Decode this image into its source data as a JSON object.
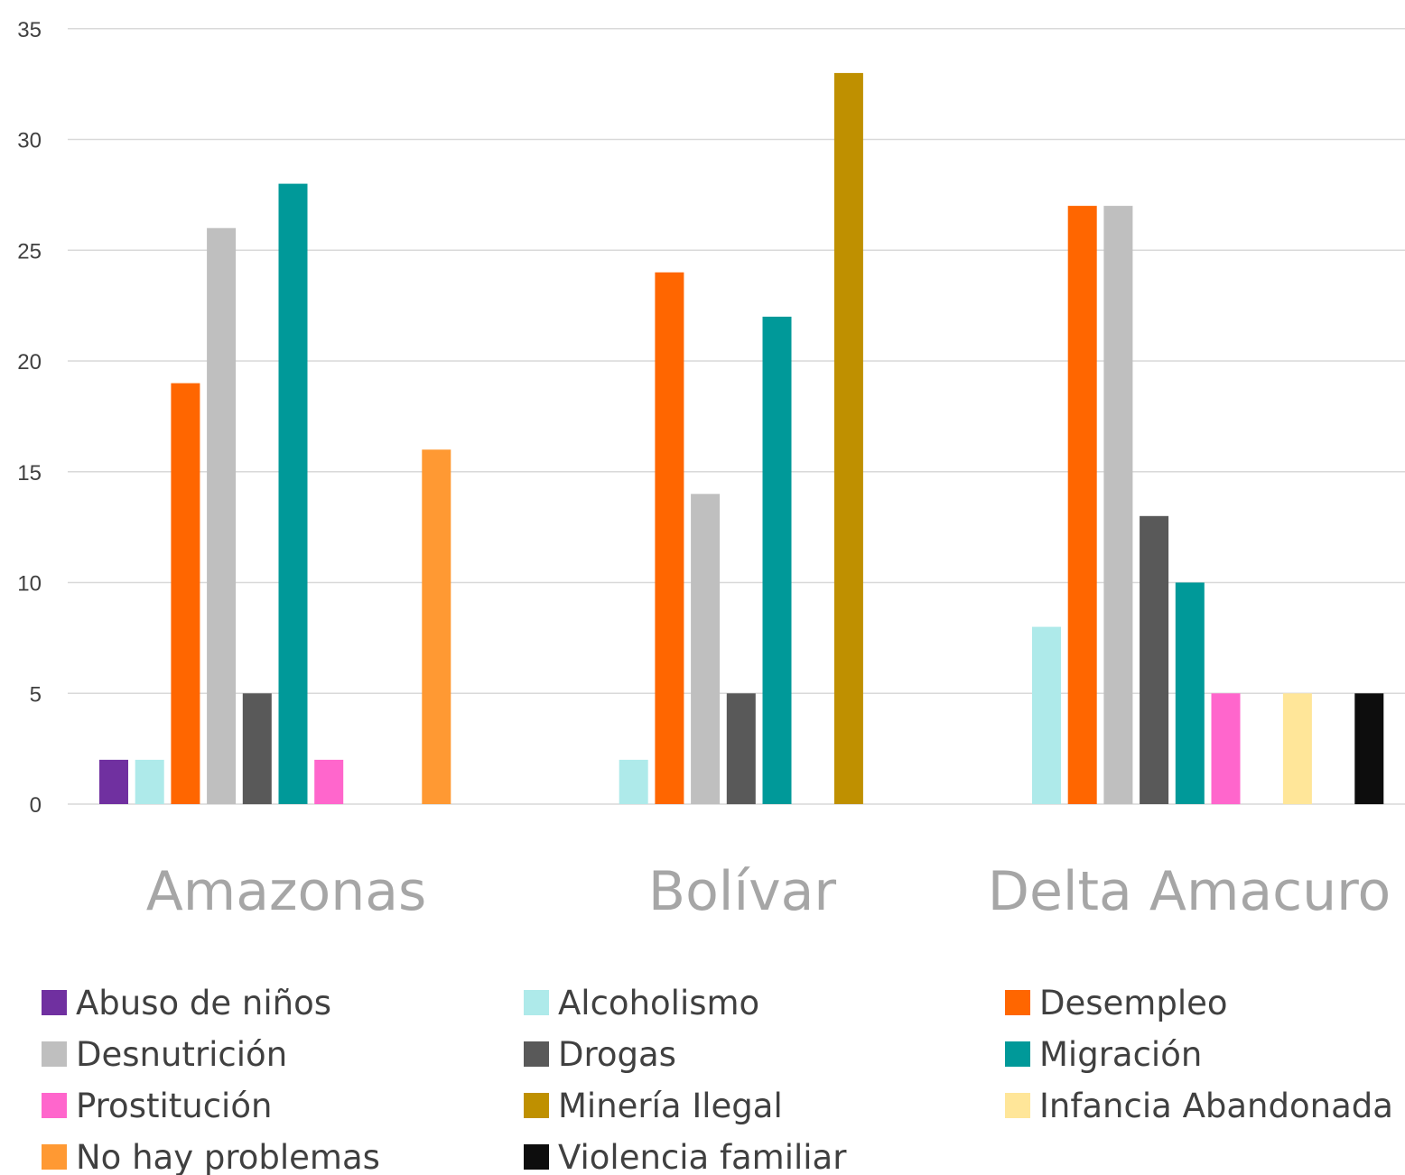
{
  "chart_data": {
    "type": "bar",
    "title": "",
    "xlabel": "",
    "ylabel": "",
    "ylim": [
      0,
      35
    ],
    "yticks": [
      0,
      5,
      10,
      15,
      20,
      25,
      30,
      35
    ],
    "grid": true,
    "legend_position": "bottom",
    "categories": [
      "Amazonas",
      "Bolívar",
      "Delta Amacuro"
    ],
    "series": [
      {
        "name": "Abuso de niños",
        "color": "#7030a0",
        "values": [
          2,
          0,
          0
        ]
      },
      {
        "name": "Alcoholismo",
        "color": "#aeeaea",
        "values": [
          2,
          2,
          8
        ]
      },
      {
        "name": "Desempleo",
        "color": "#ff6600",
        "values": [
          19,
          24,
          27
        ]
      },
      {
        "name": "Desnutrición",
        "color": "#bfbfbf",
        "values": [
          26,
          14,
          27
        ]
      },
      {
        "name": "Drogas",
        "color": "#595959",
        "values": [
          5,
          5,
          13
        ]
      },
      {
        "name": "Migración",
        "color": "#009999",
        "values": [
          28,
          22,
          10
        ]
      },
      {
        "name": "Prostitución",
        "color": "#ff66cc",
        "values": [
          2,
          0,
          5
        ]
      },
      {
        "name": "Minería Ilegal",
        "color": "#bf9000",
        "values": [
          0,
          33,
          0
        ]
      },
      {
        "name": "Infancia Abandonada",
        "color": "#ffe699",
        "values": [
          0,
          0,
          5
        ]
      },
      {
        "name": "No hay problemas",
        "color": "#ff9933",
        "values": [
          16,
          0,
          0
        ]
      },
      {
        "name": "Violencia familiar",
        "color": "#0d0d0d",
        "values": [
          0,
          0,
          5
        ]
      }
    ]
  }
}
